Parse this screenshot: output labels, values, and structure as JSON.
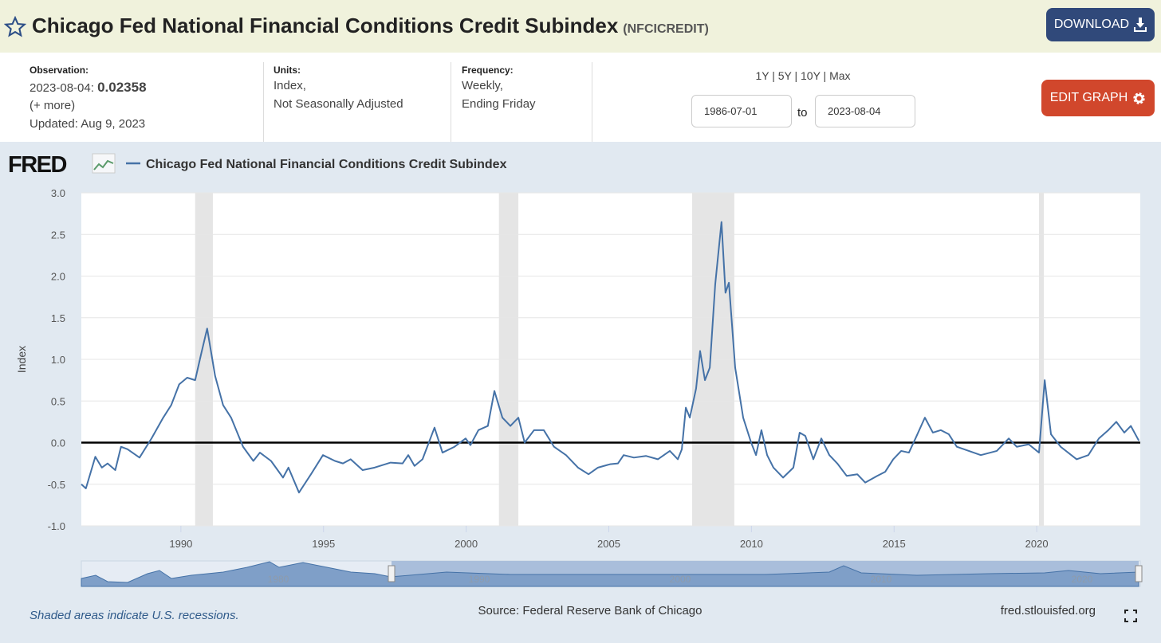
{
  "header": {
    "title": "Chicago Fed National Financial Conditions Credit Subindex",
    "code": "(NFCICREDIT)",
    "download": "DOWNLOAD"
  },
  "info": {
    "observation_label": "Observation:",
    "observation_date": "2023-08-04:",
    "observation_value": "0.02358",
    "more": "(+ more)",
    "updated": "Updated: Aug 9, 2023",
    "units_label": "Units:",
    "units": [
      "Index,",
      "Not Seasonally Adjusted"
    ],
    "frequency_label": "Frequency:",
    "frequency": [
      "Weekly,",
      "Ending Friday"
    ],
    "ranges": "1Y | 5Y | 10Y | Max",
    "start_date": "1986-07-01",
    "to": "to",
    "end_date": "2023-08-04",
    "edit_graph": "EDIT GRAPH"
  },
  "chart_data": {
    "type": "line",
    "logo": "FRED",
    "y_label": "Index",
    "x": [
      1986.51,
      1986.67,
      1987.0,
      1987.23,
      1987.43,
      1987.7,
      1987.9,
      1988.13,
      1988.55,
      1988.97,
      1989.38,
      1989.66,
      1989.94,
      1990.22,
      1990.5,
      1990.7,
      1990.92,
      1991.2,
      1991.48,
      1991.76,
      1992.18,
      1992.54,
      1992.77,
      1993.16,
      1993.58,
      1993.77,
      1994.14,
      1994.56,
      1994.98,
      1995.4,
      1995.68,
      1995.95,
      1996.37,
      1996.79,
      1997.35,
      1997.77,
      1997.97,
      1998.19,
      1998.47,
      1998.89,
      1999.17,
      1999.59,
      1999.98,
      2000.15,
      2000.43,
      2000.76,
      2000.99,
      2001.27,
      2001.55,
      2001.83,
      2002.05,
      2002.38,
      2002.72,
      2003.08,
      2003.5,
      2003.92,
      2004.29,
      2004.62,
      2005.04,
      2005.32,
      2005.52,
      2005.88,
      2006.3,
      2006.72,
      2007.14,
      2007.42,
      2007.56,
      2007.7,
      2007.84,
      2008.06,
      2008.2,
      2008.37,
      2008.54,
      2008.73,
      2008.95,
      2009.09,
      2009.21,
      2009.43,
      2009.71,
      2009.99,
      2010.16,
      2010.35,
      2010.55,
      2010.77,
      2011.11,
      2011.47,
      2011.69,
      2011.89,
      2012.17,
      2012.45,
      2012.73,
      2013.01,
      2013.34,
      2013.71,
      2013.99,
      2014.41,
      2014.69,
      2014.97,
      2015.25,
      2015.52,
      2015.75,
      2016.08,
      2016.36,
      2016.64,
      2016.92,
      2017.2,
      2017.62,
      2018.04,
      2018.6,
      2019.02,
      2019.3,
      2019.72,
      2020.08,
      2020.28,
      2020.5,
      2020.84,
      2021.4,
      2021.81,
      2022.18,
      2022.51,
      2022.79,
      2023.07,
      2023.3,
      2023.58
    ],
    "series": [
      {
        "name": "Chicago Fed National Financial Conditions Credit Subindex",
        "color": "#4572a7",
        "values": [
          -0.5,
          -0.55,
          -0.17,
          -0.3,
          -0.25,
          -0.33,
          -0.05,
          -0.08,
          -0.18,
          0.05,
          0.3,
          0.45,
          0.7,
          0.78,
          0.75,
          1.05,
          1.37,
          0.8,
          0.45,
          0.3,
          -0.05,
          -0.22,
          -0.12,
          -0.22,
          -0.42,
          -0.3,
          -0.6,
          -0.38,
          -0.15,
          -0.22,
          -0.25,
          -0.2,
          -0.33,
          -0.3,
          -0.24,
          -0.25,
          -0.15,
          -0.28,
          -0.2,
          0.18,
          -0.12,
          -0.05,
          0.05,
          -0.03,
          0.15,
          0.2,
          0.62,
          0.3,
          0.2,
          0.3,
          0.0,
          0.15,
          0.15,
          -0.05,
          -0.15,
          -0.3,
          -0.38,
          -0.3,
          -0.26,
          -0.25,
          -0.15,
          -0.18,
          -0.16,
          -0.2,
          -0.1,
          -0.2,
          -0.08,
          0.42,
          0.3,
          0.65,
          1.1,
          0.75,
          0.9,
          1.9,
          2.65,
          1.8,
          1.92,
          0.9,
          0.3,
          0.0,
          -0.15,
          0.15,
          -0.15,
          -0.3,
          -0.42,
          -0.3,
          0.12,
          0.08,
          -0.2,
          0.05,
          -0.15,
          -0.25,
          -0.4,
          -0.38,
          -0.48,
          -0.4,
          -0.35,
          -0.2,
          -0.1,
          -0.12,
          0.05,
          0.3,
          0.12,
          0.15,
          0.1,
          -0.05,
          -0.1,
          -0.15,
          -0.1,
          0.05,
          -0.05,
          -0.02,
          -0.12,
          0.75,
          0.1,
          -0.05,
          -0.2,
          -0.15,
          0.05,
          0.15,
          0.25,
          0.12,
          0.2,
          0.02358
        ]
      }
    ],
    "recessions": [
      [
        1990.5,
        1991.12
      ],
      [
        2001.15,
        2001.83
      ],
      [
        2007.92,
        2009.4
      ],
      [
        2020.08,
        2020.25
      ]
    ],
    "xlim": [
      1986.51,
      2023.63
    ],
    "ylim": [
      -1.0,
      3.0
    ],
    "xticks": [
      1990,
      1995,
      2000,
      2005,
      2010,
      2015,
      2020
    ],
    "yticks": [
      {
        "value": -1.0,
        "label": "-1.0"
      },
      -0.5,
      {
        "value": 0.0,
        "label": "0.0"
      },
      0.5,
      {
        "value": 1.0,
        "label": "1.0"
      },
      1.5,
      {
        "value": 2.0,
        "label": "2.0"
      },
      2.5,
      {
        "value": 3.0,
        "label": "3.0"
      }
    ],
    "grid": true,
    "zero_line_color": "#000000",
    "recession_color": "#e5e5e5",
    "navigator_labels": [
      1980,
      1990,
      2000,
      2010,
      2020
    ],
    "note": "Shaded areas indicate U.S. recessions.",
    "source": "Source: Federal Reserve Bank of Chicago",
    "site": "fred.stlouisfed.org"
  }
}
